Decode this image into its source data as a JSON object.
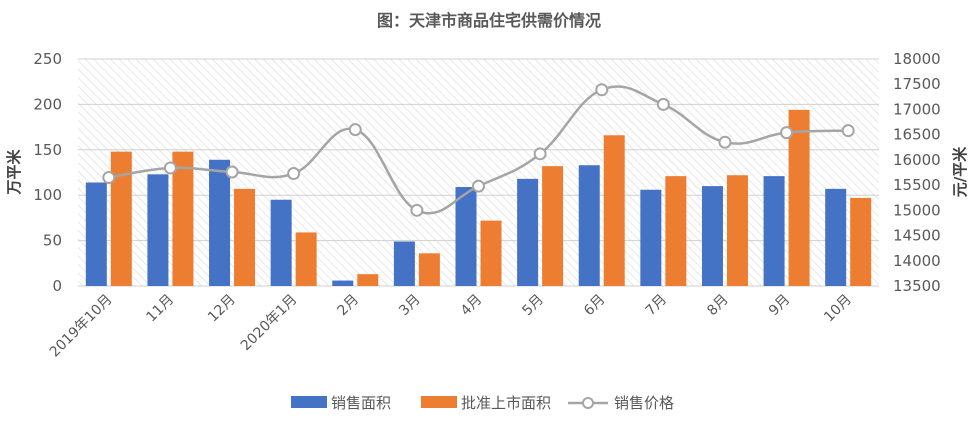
{
  "chart_data": {
    "type": "bar",
    "title": "图：天津市商品住宅供需价情况",
    "categories": [
      "2019年10月",
      "11月",
      "12月",
      "2020年1月",
      "2月",
      "3月",
      "4月",
      "5月",
      "6月",
      "7月",
      "8月",
      "9月",
      "10月"
    ],
    "series": [
      {
        "name": "销售面积",
        "type": "bar",
        "axis": "left",
        "color": "#4472C4",
        "values": [
          114,
          123,
          139,
          95,
          6,
          49,
          109,
          118,
          133,
          106,
          110,
          121,
          107
        ]
      },
      {
        "name": "批准上市面积",
        "type": "bar",
        "axis": "left",
        "color": "#ED7D31",
        "values": [
          148,
          148,
          107,
          59,
          13,
          36,
          72,
          132,
          166,
          121,
          122,
          194,
          97
        ]
      },
      {
        "name": "销售价格",
        "type": "line",
        "axis": "right",
        "color": "#A5A5A5",
        "values": [
          15650,
          15840,
          15760,
          15730,
          16600,
          15000,
          15480,
          16120,
          17390,
          17100,
          16350,
          16540,
          16580
        ]
      }
    ],
    "ylabel": "万平米",
    "ylabel_right": "元/平米",
    "ylim": [
      0,
      250
    ],
    "yticks": [
      0,
      50,
      100,
      150,
      200,
      250
    ],
    "ylim_right": [
      13500,
      18000
    ],
    "yticks_right": [
      13500,
      14000,
      14500,
      15000,
      15500,
      16000,
      16500,
      17000,
      17500,
      18000
    ],
    "grid": true,
    "legend_position": "bottom"
  }
}
